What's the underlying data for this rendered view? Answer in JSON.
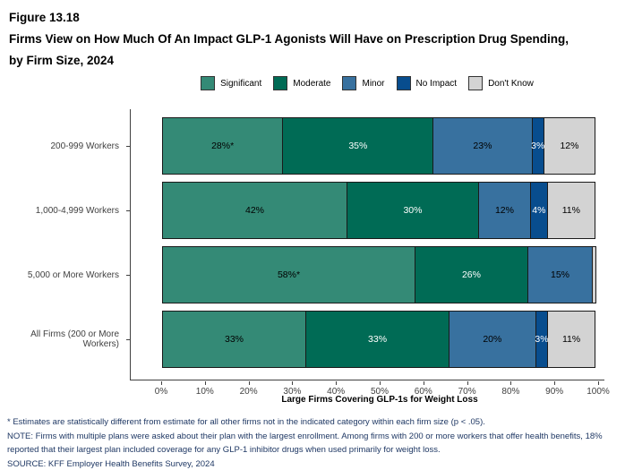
{
  "title": {
    "figure_label": "Figure 13.18",
    "text": "Firms View on How Much Of An Impact GLP-1 Agonists Will Have on Prescription Drug Spending, by Firm Size, 2024"
  },
  "chart_data": {
    "type": "bar",
    "orientation": "horizontal",
    "stacked": true,
    "grid": false,
    "legend_position": "top",
    "categories": [
      "200-999 Workers",
      "1,000-4,999 Workers",
      "5,000 or More Workers",
      "All Firms (200 or More Workers)"
    ],
    "series": [
      {
        "name": "Significant",
        "color": "#348a76",
        "text_color": "#000000",
        "values": [
          28,
          42,
          58,
          33
        ],
        "labels": [
          "28%*",
          "42%",
          "58%*",
          "33%"
        ]
      },
      {
        "name": "Moderate",
        "color": "#006b55",
        "text_color": "#ffffff",
        "values": [
          35,
          30,
          26,
          33
        ],
        "labels": [
          "35%",
          "30%",
          "26%",
          "33%"
        ]
      },
      {
        "name": "Minor",
        "color": "#38719f",
        "text_color": "#000000",
        "values": [
          23,
          12,
          15,
          20
        ],
        "labels": [
          "23%",
          "12%",
          "15%",
          "20%"
        ]
      },
      {
        "name": "No Impact",
        "color": "#084d8e",
        "text_color": "#ffffff",
        "values": [
          3,
          4,
          0,
          3
        ],
        "labels": [
          "3%",
          "4%",
          "",
          "3%"
        ]
      },
      {
        "name": "Don't Know",
        "color": "#d3d3d3",
        "text_color": "#000000",
        "values": [
          12,
          11,
          1,
          11
        ],
        "labels": [
          "12%",
          "11%",
          "",
          "11%"
        ]
      }
    ],
    "x_ticks": [
      "0%",
      "10%",
      "20%",
      "30%",
      "40%",
      "50%",
      "60%",
      "70%",
      "80%",
      "90%",
      "100%"
    ],
    "xlim": [
      0,
      100
    ],
    "xlabel": "Large Firms Covering GLP-1s for Weight Loss",
    "ylabel": ""
  },
  "footnotes": {
    "asterisk": "* Estimates are statistically different from estimate for all other firms not in the indicated category within each firm size (p < .05).",
    "note": "NOTE: Firms with multiple plans were asked about their plan with the largest enrollment.  Among firms with 200 or more workers that offer health benefits, 18% reported that their largest plan included coverage for any GLP-1 inhibitor drugs when used primarily for weight loss.",
    "source": "SOURCE: KFF Employer Health Benefits Survey, 2024"
  }
}
